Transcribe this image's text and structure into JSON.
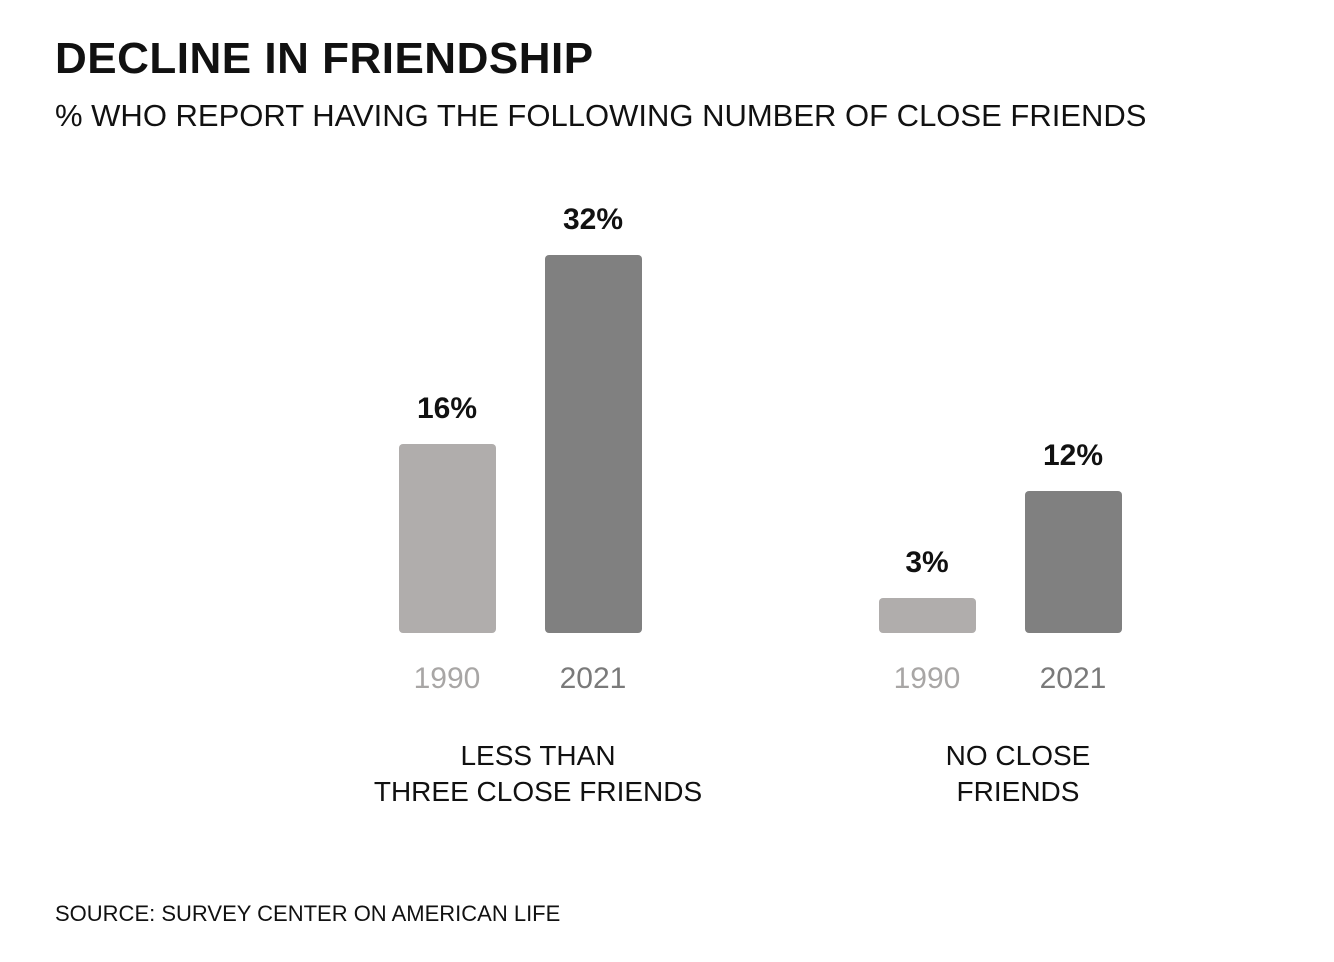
{
  "chart_data": {
    "type": "bar",
    "title": "DECLINE IN FRIENDSHIP",
    "subtitle": "% WHO REPORT HAVING THE FOLLOWING NUMBER OF CLOSE FRIENDS",
    "categories": [
      "LESS THAN\nTHREE CLOSE FRIENDS",
      "NO CLOSE\nFRIENDS"
    ],
    "series": [
      {
        "name": "1990",
        "color": "#b0adac",
        "values": [
          16,
          3
        ],
        "value_labels": [
          "16%",
          "3%"
        ]
      },
      {
        "name": "2021",
        "color": "#808080",
        "values": [
          32,
          12
        ],
        "value_labels": [
          "32%",
          "12%"
        ]
      }
    ],
    "source": "SOURCE: SURVEY CENTER ON AMERICAN LIFE"
  }
}
